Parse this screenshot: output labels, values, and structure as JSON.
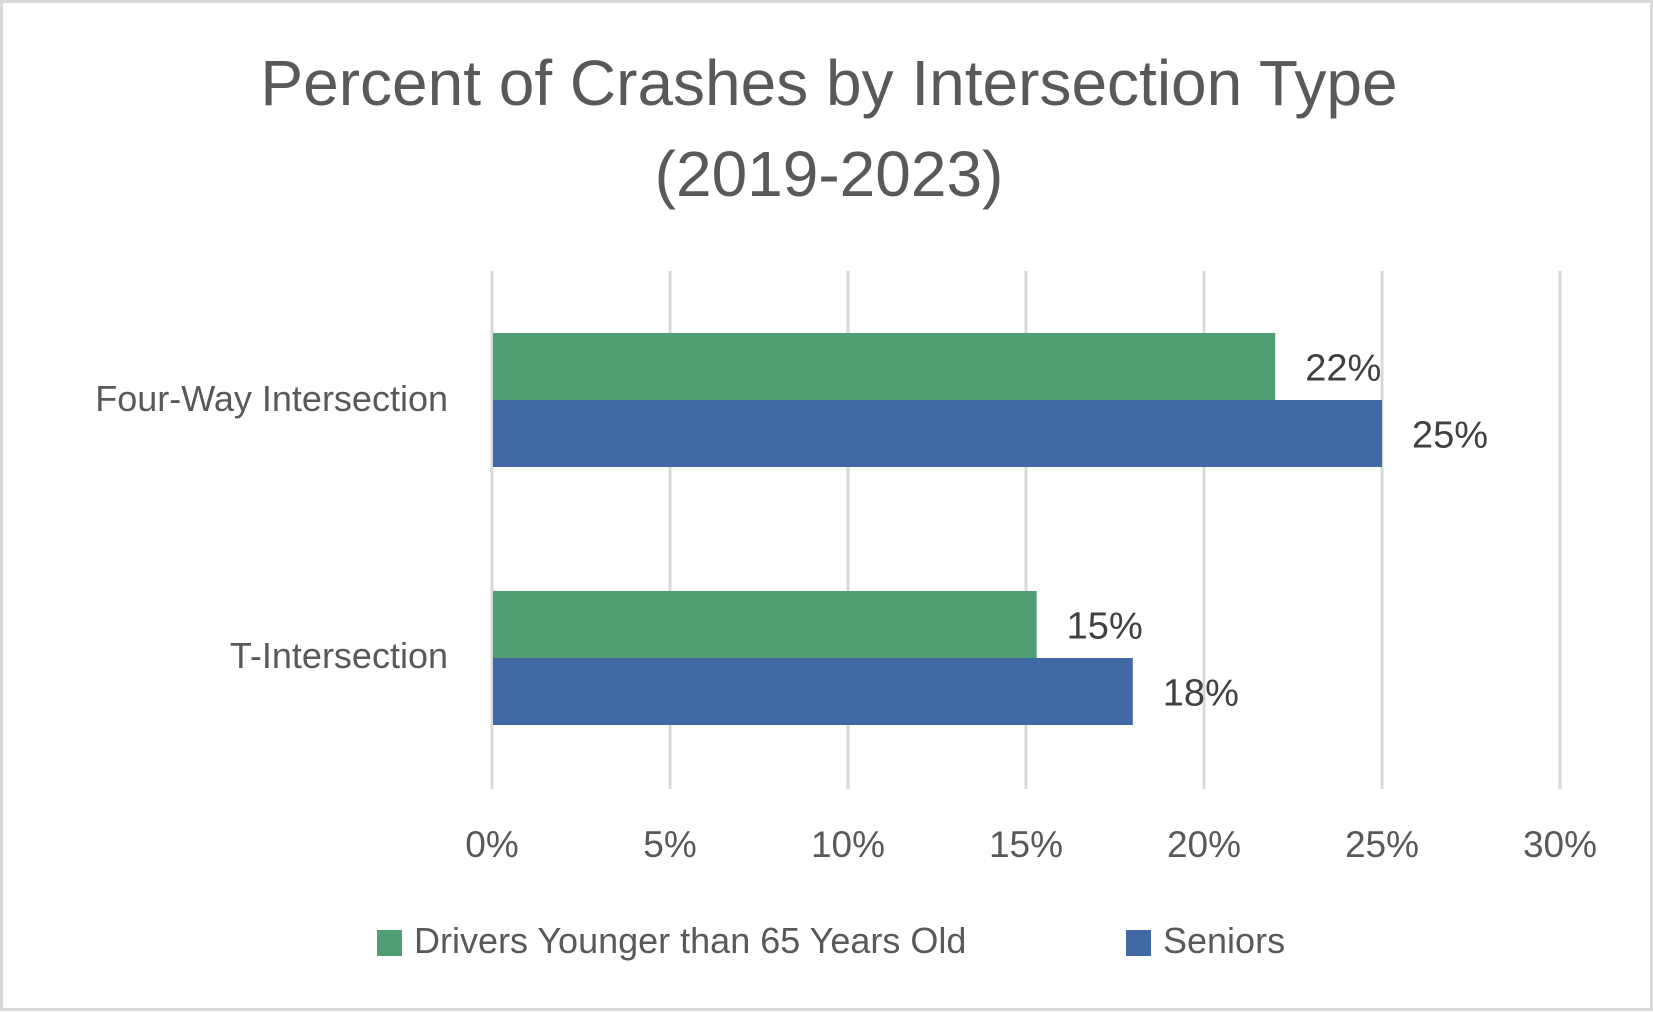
{
  "chart_data": {
    "type": "bar",
    "orientation": "horizontal",
    "title": "Percent of Crashes by Intersection Type",
    "subtitle": "(2019-2023)",
    "categories": [
      "Four-Way Intersection",
      "T-Intersection"
    ],
    "series": [
      {
        "name": "Drivers Younger than 65 Years Old",
        "color": "#529e74",
        "values": [
          22,
          15.3
        ],
        "labels": [
          "22%",
          "15%"
        ]
      },
      {
        "name": "Seniors",
        "color": "#4069a5",
        "values": [
          25,
          18
        ],
        "labels": [
          "25%",
          "18%"
        ]
      }
    ],
    "xlabel": "",
    "ylabel": "",
    "xlim": [
      0,
      30
    ],
    "xticks": [
      0,
      5,
      10,
      15,
      20,
      25,
      30
    ],
    "xtick_labels": [
      "0%",
      "5%",
      "10%",
      "15%",
      "20%",
      "25%",
      "30%"
    ],
    "grid": "vertical",
    "legend_position": "bottom"
  }
}
